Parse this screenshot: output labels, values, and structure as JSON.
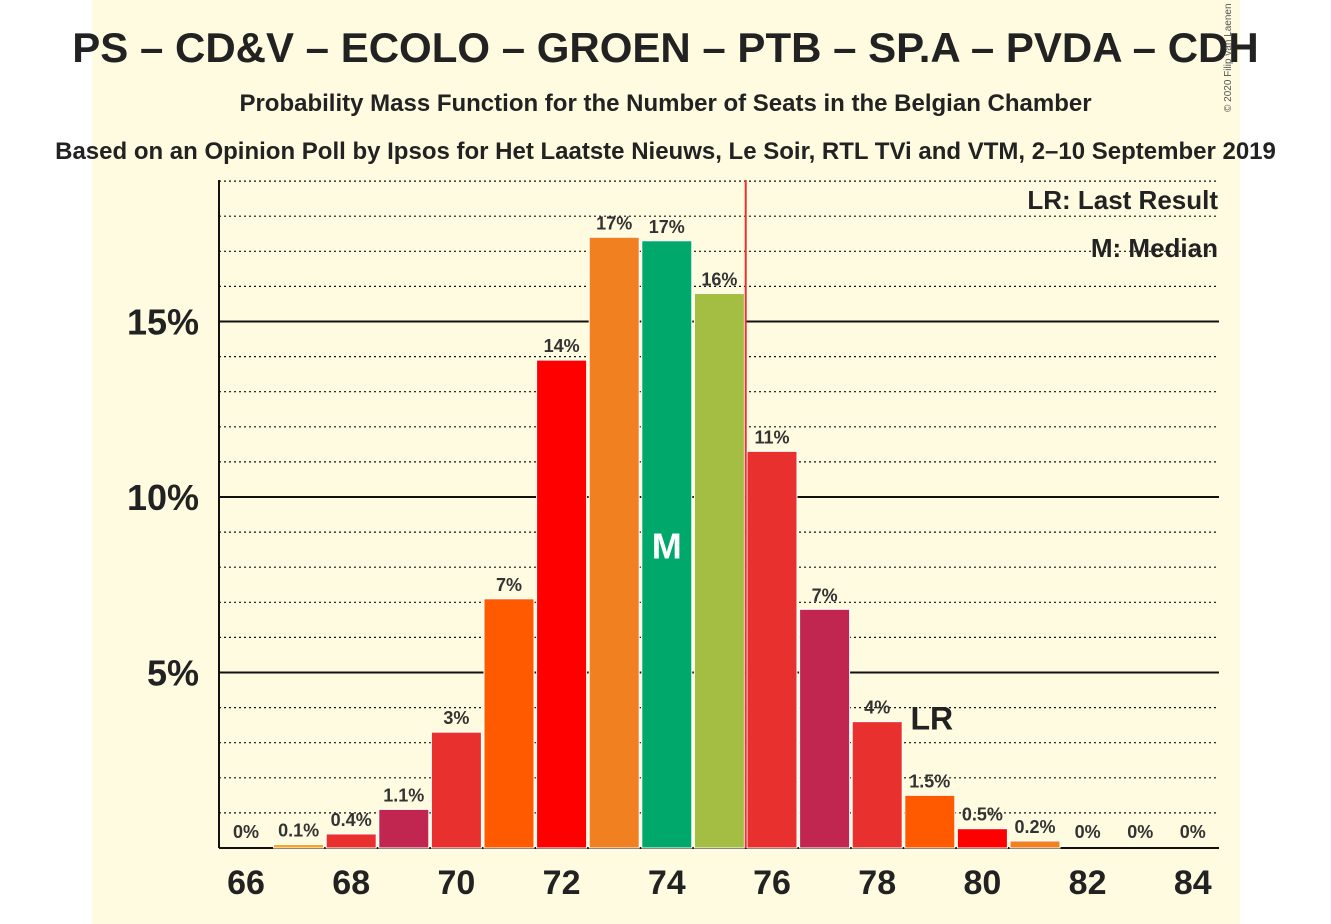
{
  "header": {
    "title": "PS – CD&V – ECOLO – GROEN – PTB – SP.A – PVDA – CDH",
    "subtitle": "Probability Mass Function for the Number of Seats in the Belgian Chamber",
    "source": "Based on an Opinion Poll by Ipsos for Het Laatste Nieuws, Le Soir, RTL TVi and VTM, 2–10 September 2019",
    "copyright": "© 2020 Filip van Laenen"
  },
  "legend": {
    "last_result": "LR: Last Result",
    "median": "M: Median"
  },
  "chart_data": {
    "type": "bar",
    "x": [
      66,
      67,
      68,
      69,
      70,
      71,
      72,
      73,
      74,
      75,
      76,
      77,
      78,
      79,
      80,
      81,
      82,
      83,
      84
    ],
    "values": [
      0,
      0.1,
      0.4,
      1.1,
      3.3,
      7.1,
      13.9,
      17.4,
      17.3,
      15.8,
      11.3,
      6.8,
      3.6,
      1.5,
      0.55,
      0.2,
      0,
      0,
      0
    ],
    "labels": [
      "0%",
      "0.1%",
      "0.4%",
      "1.1%",
      "3%",
      "7%",
      "14%",
      "17%",
      "17%",
      "16%",
      "11%",
      "7%",
      "4%",
      "1.5%",
      "0.5%",
      "0.2%",
      "0%",
      "0%",
      "0%"
    ],
    "colors": [
      "#e8312f",
      "#f5a623",
      "#e8312f",
      "#c0264f",
      "#e8312f",
      "#ff5a00",
      "#ff0000",
      "#f08020",
      "#00a86b",
      "#a3be42",
      "#e8312f",
      "#c0264f",
      "#e8312f",
      "#ff5a00",
      "#ff0000",
      "#f08020",
      "#00a86b",
      "#a3be42",
      "#e8312f"
    ],
    "x_ticks": [
      66,
      68,
      70,
      72,
      74,
      76,
      78,
      80,
      82,
      84
    ],
    "x_tick_labels": [
      "66",
      "68",
      "70",
      "72",
      "74",
      "76",
      "78",
      "80",
      "82",
      "84"
    ],
    "y_ticks": [
      5,
      10,
      15
    ],
    "y_tick_labels": [
      "5%",
      "10%",
      "15%"
    ],
    "ylim": [
      0,
      19
    ],
    "xlim": [
      65.5,
      84.5
    ],
    "minor_grid_step": 1,
    "median": 74,
    "median_label": "M",
    "last_result": 79,
    "last_result_label": "LR",
    "majority_line": 75.5,
    "majority_color": "#e8312f"
  }
}
